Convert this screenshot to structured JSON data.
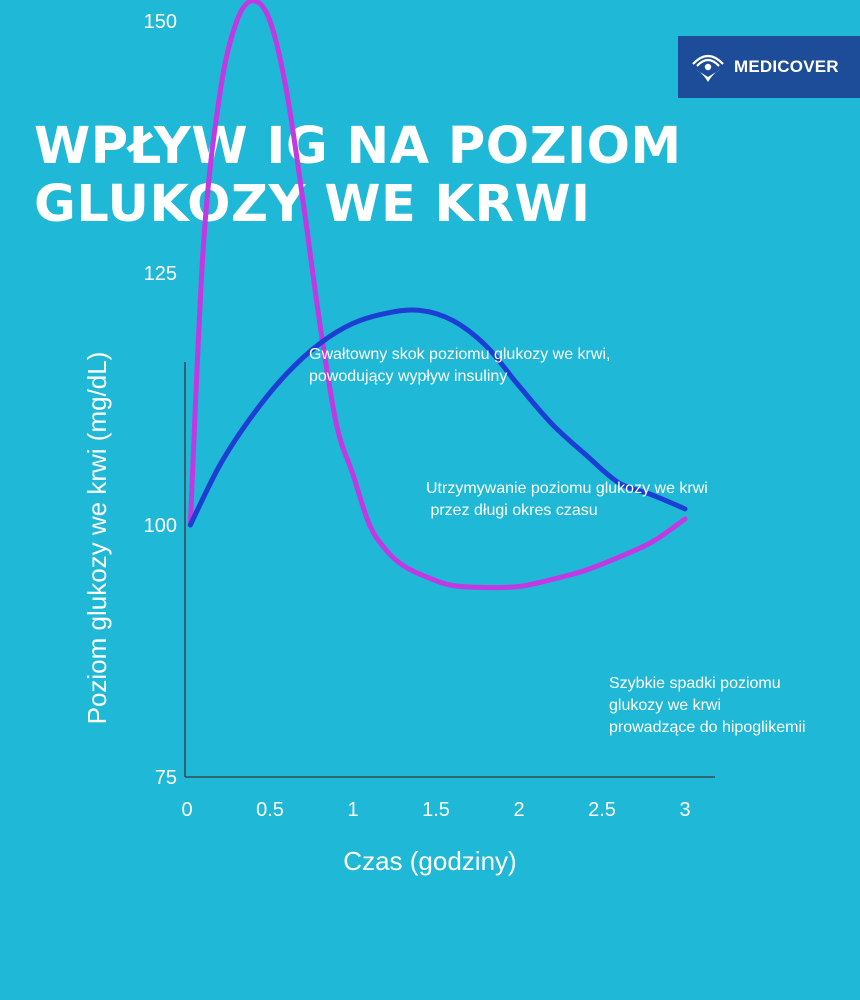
{
  "logo": {
    "text": "MEDICOVER",
    "bg_color": "#1d4d99"
  },
  "title_lines": [
    "WPŁYW IG NA POZIOM",
    "GLUKOZY WE KRWI"
  ],
  "annotations": {
    "spike": "Gwałtowny skok poziomu glukozy we krwi,\npowodujący wypływ insuliny",
    "sustain": "Utrzymywanie poziomu glukozy we krwi\n przez długi okres czasu",
    "drop": "Szybkie spadki poziomu\nglukozy we krwi\nprowadzące do hipoglikemii"
  },
  "chart_data": {
    "type": "line",
    "xlabel": "Czas (godziny)",
    "ylabel": "Poziom glukozy we krwi (mg/dL)",
    "x_ticks": [
      0,
      0.5,
      1,
      1.5,
      2,
      2.5,
      3
    ],
    "y_ticks": [
      75,
      100,
      125,
      150
    ],
    "xlim": [
      0,
      3.05
    ],
    "ylim": [
      75,
      153
    ],
    "grid": false,
    "series": [
      {
        "color": "#c238e3",
        "points": [
          [
            0.02,
            100
          ],
          [
            0.1,
            128
          ],
          [
            0.2,
            143
          ],
          [
            0.3,
            150
          ],
          [
            0.4,
            152
          ],
          [
            0.5,
            150
          ],
          [
            0.6,
            143
          ],
          [
            0.7,
            132
          ],
          [
            0.8,
            120
          ],
          [
            0.9,
            110
          ],
          [
            1.0,
            105
          ],
          [
            1.1,
            100
          ],
          [
            1.2,
            97.5
          ],
          [
            1.3,
            96
          ],
          [
            1.45,
            94.8
          ],
          [
            1.6,
            94
          ],
          [
            1.8,
            93.8
          ],
          [
            2.0,
            93.9
          ],
          [
            2.2,
            94.6
          ],
          [
            2.4,
            95.5
          ],
          [
            2.6,
            96.8
          ],
          [
            2.8,
            98.3
          ],
          [
            3.0,
            100.6
          ]
        ]
      },
      {
        "color": "#1d3ed3",
        "points": [
          [
            0.02,
            100
          ],
          [
            0.2,
            106
          ],
          [
            0.4,
            111
          ],
          [
            0.6,
            115
          ],
          [
            0.8,
            118
          ],
          [
            1.0,
            120
          ],
          [
            1.2,
            121
          ],
          [
            1.4,
            121.3
          ],
          [
            1.6,
            120.3
          ],
          [
            1.8,
            117.8
          ],
          [
            2.0,
            113.8
          ],
          [
            2.2,
            110
          ],
          [
            2.4,
            107
          ],
          [
            2.6,
            104.2
          ],
          [
            2.8,
            103
          ],
          [
            3.0,
            101.6
          ]
        ]
      }
    ]
  }
}
